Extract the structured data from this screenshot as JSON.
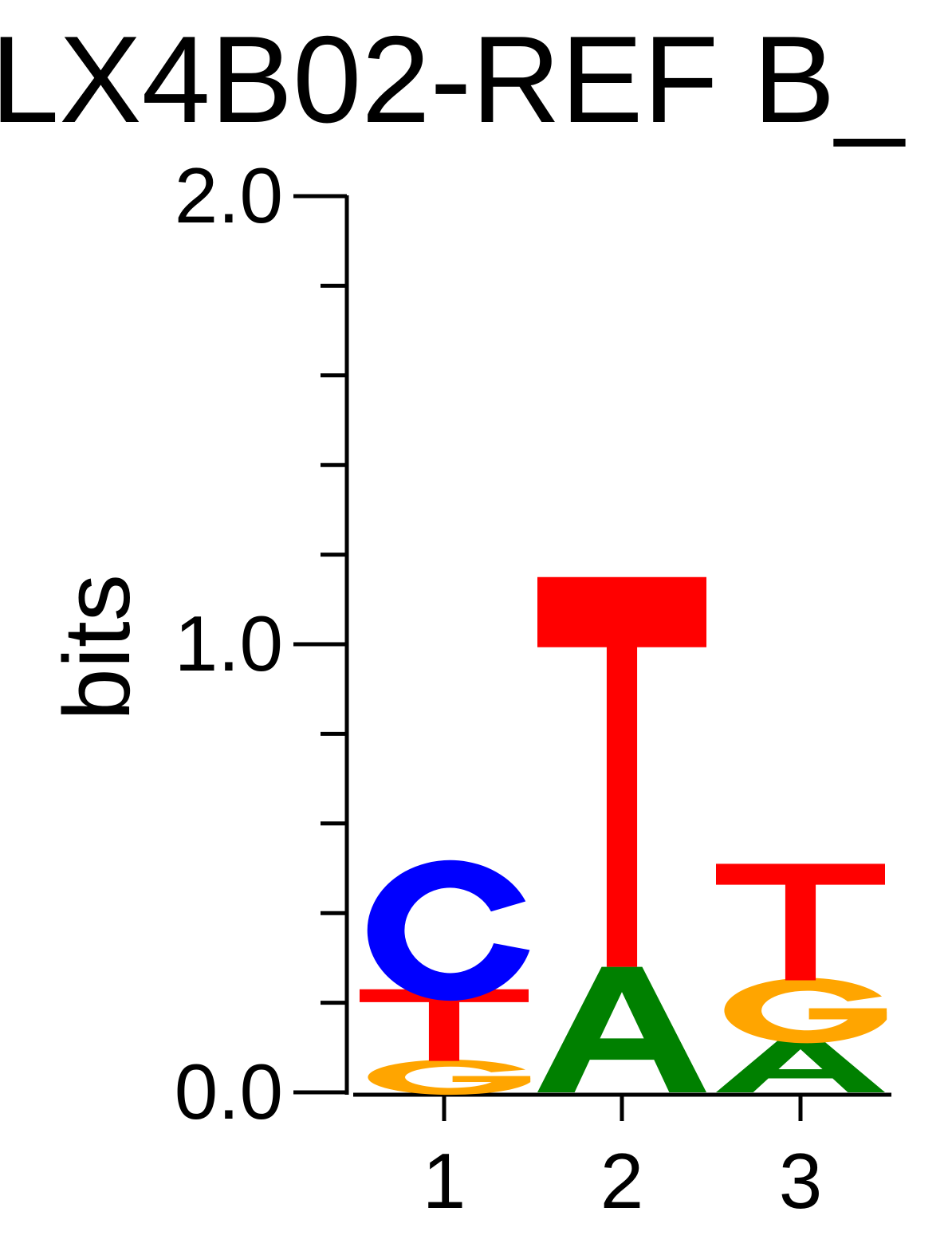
{
  "chart_data": {
    "type": "sequence-logo",
    "title": "LX4B02-REF B_",
    "ylabel": "bits",
    "ylim": [
      0,
      2.0
    ],
    "y_tick_labels": [
      "0.0",
      "1.0",
      "2.0"
    ],
    "y_minor_ticks": 10,
    "positions": [
      {
        "label": "1",
        "letters": [
          {
            "base": "G",
            "bits": 0.07
          },
          {
            "base": "T",
            "bits": 0.16
          },
          {
            "base": "C",
            "bits": 0.28
          }
        ]
      },
      {
        "label": "2",
        "letters": [
          {
            "base": "A",
            "bits": 0.28
          },
          {
            "base": "T",
            "bits": 0.87
          }
        ]
      },
      {
        "label": "3",
        "letters": [
          {
            "base": "A",
            "bits": 0.12
          },
          {
            "base": "G",
            "bits": 0.13
          },
          {
            "base": "T",
            "bits": 0.26
          }
        ]
      }
    ],
    "colors": {
      "A": "#008000",
      "C": "#0000ff",
      "G": "#ffa500",
      "T": "#ff0000"
    }
  }
}
